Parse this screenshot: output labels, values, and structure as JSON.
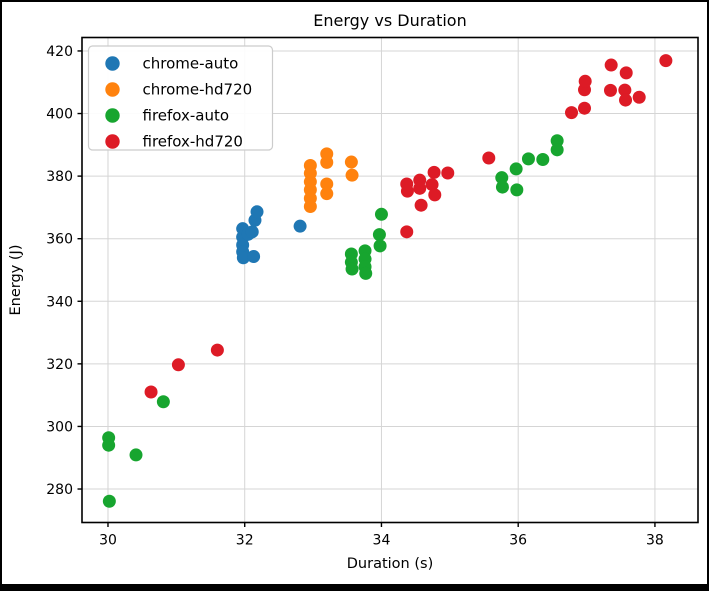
{
  "window": {
    "background": "#ffffff",
    "frame_color": "#000000"
  },
  "chart_data": {
    "type": "scatter",
    "title": "Energy vs Duration",
    "xlabel": "Duration (s)",
    "ylabel": "Energy (J)",
    "xlim": [
      29.62,
      38.63
    ],
    "ylim": [
      269.3,
      424.3
    ],
    "x_ticks": [
      30,
      32,
      34,
      36,
      38
    ],
    "y_ticks": [
      280,
      300,
      320,
      340,
      360,
      380,
      400,
      420
    ],
    "grid": true,
    "grid_color": "#d5d5d5",
    "legend_position": "upper-left",
    "marker_diameter_px": 13,
    "series": [
      {
        "name": "chrome-auto",
        "color": "#1f77b4",
        "points": [
          [
            31.97,
            363.2
          ],
          [
            31.97,
            360.5
          ],
          [
            31.97,
            358.0
          ],
          [
            31.97,
            355.8
          ],
          [
            31.98,
            353.9
          ],
          [
            32.05,
            361.4
          ],
          [
            32.11,
            362.2
          ],
          [
            32.13,
            354.3
          ],
          [
            32.15,
            365.9
          ],
          [
            32.18,
            368.6
          ],
          [
            32.81,
            364.0
          ]
        ]
      },
      {
        "name": "chrome-hd720",
        "color": "#ff820e",
        "points": [
          [
            32.96,
            383.4
          ],
          [
            32.96,
            380.9
          ],
          [
            32.96,
            378.2
          ],
          [
            32.96,
            375.6
          ],
          [
            32.96,
            372.9
          ],
          [
            32.96,
            370.3
          ],
          [
            33.2,
            387.1
          ],
          [
            33.2,
            384.4
          ],
          [
            33.2,
            377.5
          ],
          [
            33.2,
            374.4
          ],
          [
            33.56,
            384.5
          ],
          [
            33.57,
            380.3
          ]
        ]
      },
      {
        "name": "firefox-auto",
        "color": "#17a52f",
        "points": [
          [
            30.01,
            296.4
          ],
          [
            30.01,
            294.0
          ],
          [
            30.41,
            290.9
          ],
          [
            30.02,
            276.1
          ],
          [
            30.81,
            307.9
          ],
          [
            33.56,
            355.1
          ],
          [
            33.56,
            352.5
          ],
          [
            33.57,
            350.3
          ],
          [
            33.76,
            356.1
          ],
          [
            33.76,
            353.5
          ],
          [
            33.76,
            351.0
          ],
          [
            33.77,
            348.9
          ],
          [
            33.97,
            361.3
          ],
          [
            33.98,
            357.7
          ],
          [
            34.0,
            367.8
          ],
          [
            35.76,
            379.5
          ],
          [
            35.77,
            376.5
          ],
          [
            35.97,
            382.3
          ],
          [
            35.98,
            375.6
          ],
          [
            36.15,
            385.5
          ],
          [
            36.36,
            385.3
          ],
          [
            36.57,
            391.3
          ],
          [
            36.57,
            388.4
          ]
        ]
      },
      {
        "name": "firefox-hd720",
        "color": "#dd1b26",
        "points": [
          [
            30.63,
            311.0
          ],
          [
            31.03,
            319.7
          ],
          [
            31.6,
            324.4
          ],
          [
            34.37,
            362.2
          ],
          [
            34.37,
            377.5
          ],
          [
            34.38,
            375.2
          ],
          [
            34.56,
            378.7
          ],
          [
            34.56,
            376.1
          ],
          [
            34.58,
            370.7
          ],
          [
            34.74,
            377.3
          ],
          [
            34.77,
            381.2
          ],
          [
            34.78,
            374.0
          ],
          [
            34.97,
            381.0
          ],
          [
            35.57,
            385.8
          ],
          [
            36.78,
            400.3
          ],
          [
            36.97,
            401.7
          ],
          [
            36.97,
            407.6
          ],
          [
            36.98,
            410.3
          ],
          [
            37.35,
            407.4
          ],
          [
            37.36,
            415.5
          ],
          [
            37.56,
            407.5
          ],
          [
            37.57,
            404.3
          ],
          [
            37.58,
            413.0
          ],
          [
            37.77,
            405.2
          ],
          [
            38.16,
            416.9
          ]
        ]
      }
    ]
  }
}
